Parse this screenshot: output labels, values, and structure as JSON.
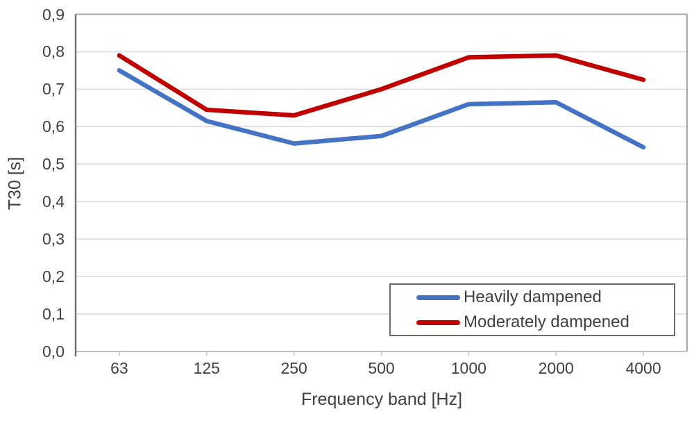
{
  "chart_data": {
    "type": "line",
    "title": "",
    "xlabel": "Frequency band [Hz]",
    "ylabel": "T30 [s]",
    "categories": [
      "63",
      "125",
      "250",
      "500",
      "1000",
      "2000",
      "4000"
    ],
    "series": [
      {
        "name": "Heavily dampened",
        "color": "#4472C4",
        "values": [
          0.75,
          0.615,
          0.555,
          0.575,
          0.66,
          0.665,
          0.545
        ]
      },
      {
        "name": "Moderately dampened",
        "color": "#C00000",
        "values": [
          0.79,
          0.645,
          0.63,
          0.7,
          0.785,
          0.79,
          0.725
        ]
      }
    ],
    "ylim": [
      0.0,
      0.9
    ],
    "ytick_step": 0.1,
    "ytick_labels": [
      "0,0",
      "0,1",
      "0,2",
      "0,3",
      "0,4",
      "0,5",
      "0,6",
      "0,7",
      "0,8",
      "0,9"
    ],
    "grid": true,
    "legend_position": "inside-bottom-right",
    "colors": {
      "gridline": "#D9D9D9",
      "axis_left": "#737373",
      "axis_top_right": "#A6A6A6",
      "axis_bottom": "#BFBFBF",
      "tick_mark": "#BFBFBF",
      "text": "#404040",
      "legend_border": "#696969",
      "background": "#FFFFFF"
    }
  }
}
